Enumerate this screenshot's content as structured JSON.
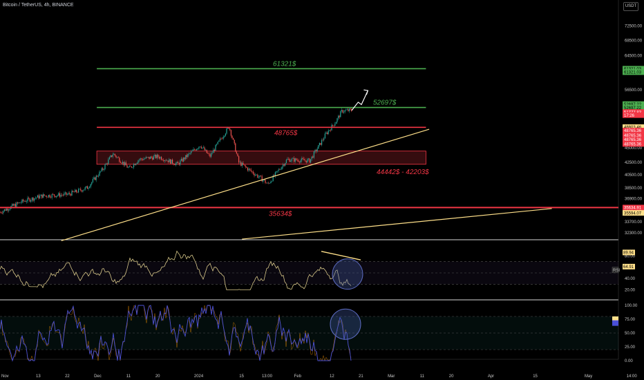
{
  "header": {
    "symbol": "Bitcoin / TetherUS, 4h, BINANCE",
    "currency": "USDT"
  },
  "colors": {
    "green": "#4caf50",
    "red": "#f23645",
    "yellow": "#ffe08a",
    "candle_up": "#26a69a",
    "candle_down": "#ef5350",
    "rsi": "#d9c98a",
    "stoch": "#4a50d8"
  },
  "levels": [
    {
      "label": "61321$",
      "price": 61321,
      "color": "green",
      "x_start": "Dec 1",
      "x_end": "Mar 12"
    },
    {
      "label": "52697$",
      "price": 52697,
      "color": "green",
      "x_start": "Dec 1",
      "x_end": "Mar 12"
    },
    {
      "label": "48765$",
      "price": 48765,
      "color": "red",
      "x_start": "Dec 1",
      "x_end": "Mar 12"
    },
    {
      "label": "35634$",
      "price": 35634,
      "color": "red",
      "x_start": "Nov 1",
      "x_end": "May 14"
    }
  ],
  "zone": {
    "label": "44442$ - 42203$",
    "top": 44442,
    "bottom": 42203
  },
  "right_tags": [
    {
      "text": "61321.03",
      "price": 61321,
      "bg": "#4caf50",
      "fg": "#000"
    },
    {
      "text": "61321.03",
      "price": 60500,
      "bg": "#4caf50",
      "fg": "#000"
    },
    {
      "text": "52697.22",
      "price": 53400,
      "bg": "#4caf50",
      "fg": "#000"
    },
    {
      "text": "52697.22",
      "price": 52697,
      "bg": "#4caf50",
      "fg": "#000"
    },
    {
      "text": "51777.83",
      "price": 51777,
      "bg": "#f23645",
      "fg": "#fff"
    },
    {
      "text": "17:26",
      "price": 51150,
      "bg": "#f23645",
      "fg": "#fff"
    },
    {
      "text": "48803.46",
      "price": 48803,
      "bg": "#ffe08a",
      "fg": "#000"
    },
    {
      "text": "48765.36",
      "price": 48150,
      "bg": "#f23645",
      "fg": "#fff"
    },
    {
      "text": "48765.36",
      "price": 47300,
      "bg": "#f23645",
      "fg": "#fff"
    },
    {
      "text": "48765.36",
      "price": 46500,
      "bg": "#f23645",
      "fg": "#fff"
    },
    {
      "text": "48765.36",
      "price": 45700,
      "bg": "#f23645",
      "fg": "#fff"
    },
    {
      "text": "35634.91",
      "price": 35634,
      "bg": "#f23645",
      "fg": "#fff"
    },
    {
      "text": "35594.07",
      "price": 34900,
      "bg": "#ffe08a",
      "fg": "#000"
    }
  ],
  "rsi_panel": {
    "label": "RSI",
    "ticks": [
      "80.00",
      "60.00",
      "40.00",
      "20.00"
    ],
    "tag_top": "89.94",
    "tag_mid": "64.91"
  },
  "stoch_panel": {
    "ticks": [
      "100.00",
      "75.00",
      "50.00",
      "25.00",
      "0.00"
    ]
  },
  "chart_data": {
    "type": "candlestick",
    "title": "Bitcoin / TetherUS, 4h, BINANCE",
    "y_scale": "log",
    "ylim": [
      31000,
      76000
    ],
    "y_ticks": [
      72500,
      68500,
      64500,
      60500,
      56500,
      52500,
      48500,
      45000,
      42500,
      40500,
      38500,
      36900,
      33700,
      32300
    ],
    "x_ticks": [
      "Nov",
      "13",
      "22",
      "Dec",
      "11",
      "20",
      "2024",
      "15",
      "13:00",
      "Feb",
      "12",
      "21",
      "Mar",
      "11",
      "20",
      "Apr",
      "15",
      "May",
      "14:00"
    ],
    "price_path": [
      [
        "Nov 1",
        35000
      ],
      [
        "Nov 8",
        36500
      ],
      [
        "Nov 14",
        37300
      ],
      [
        "Nov 22",
        37500
      ],
      [
        "Nov 28",
        38500
      ],
      [
        "Dec 3",
        41500
      ],
      [
        "Dec 6",
        44000
      ],
      [
        "Dec 11",
        41500
      ],
      [
        "Dec 14",
        43000
      ],
      [
        "Dec 20",
        43500
      ],
      [
        "Dec 26",
        42200
      ],
      [
        "Jan 2",
        45500
      ],
      [
        "Jan 5",
        43500
      ],
      [
        "Jan 11",
        48900
      ],
      [
        "Jan 14",
        42500
      ],
      [
        "Jan 22",
        39500
      ],
      [
        "Jan 23",
        39000
      ],
      [
        "Jan 29",
        43000
      ],
      [
        "Feb 5",
        42800
      ],
      [
        "Feb 8",
        45500
      ],
      [
        "Feb 10",
        47500
      ],
      [
        "Feb 13",
        49800
      ],
      [
        "Feb 15",
        52000
      ],
      [
        "Feb 18",
        52100
      ]
    ],
    "projection": [
      [
        "Feb 18",
        52100
      ],
      [
        "Feb 20",
        53800
      ],
      [
        "Feb 21",
        53300
      ],
      [
        "Feb 23",
        56300
      ]
    ],
    "trendlines": [
      {
        "from": [
          "Nov 20",
          31300
        ],
        "to": [
          "Mar 13",
          48400
        ]
      },
      {
        "from": [
          "Jan 15",
          31500
        ],
        "to": [
          "Apr 20",
          35500
        ]
      }
    ]
  }
}
